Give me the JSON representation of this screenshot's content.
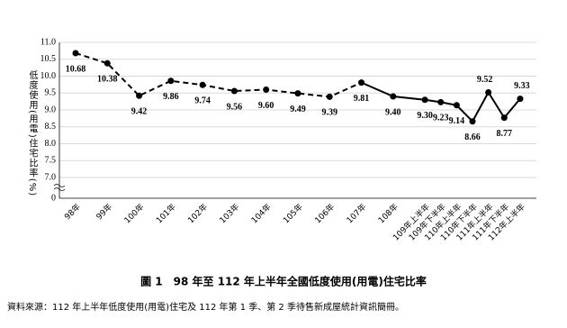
{
  "chart_data": {
    "type": "line",
    "caption": "圖 1　98 年至 112 年上半年全國低度使用(用電)住宅比率",
    "source": "資料來源：112 年上半年低度使用(用電)住宅及 112 年第 1 季、第 2 季待售新成屋統計資訊簡冊。",
    "y_label": "低度使用(用電)住宅比率(%)",
    "categories": [
      "98年",
      "99年",
      "100年",
      "101年",
      "102年",
      "103年",
      "104年",
      "105年",
      "106年",
      "107年",
      "108年",
      "109年上半年",
      "109年下半年",
      "110年上半年",
      "110年下半年",
      "111年上半年",
      "111年下半年",
      "112年上半年"
    ],
    "values": [
      10.68,
      10.38,
      9.42,
      9.86,
      9.74,
      9.56,
      9.6,
      9.49,
      9.39,
      9.81,
      9.4,
      9.3,
      9.23,
      9.14,
      8.66,
      9.52,
      8.77,
      9.33
    ],
    "value_labels": [
      "10.68",
      "10.38",
      "9.42",
      "9.86",
      "9.74",
      "9.56",
      "9.60",
      "9.49",
      "9.39",
      "9.81",
      "9.40",
      "9.30",
      "9.23",
      "9.14",
      "8.66",
      "9.52",
      "8.77",
      "9.33"
    ],
    "color": "#000000",
    "ylim": [
      0,
      11
    ],
    "y_break": [
      0,
      7
    ],
    "yticks": [
      0,
      {
        "value": 7,
        "label": "7.0"
      },
      {
        "value": 7.5,
        "label": "7.5"
      },
      {
        "value": 8,
        "label": "8.0"
      },
      {
        "value": 8.5,
        "label": "8.5"
      },
      {
        "value": 9,
        "label": "9.0"
      },
      {
        "value": 9.5,
        "label": "9.5"
      },
      {
        "value": 10,
        "label": "10.0"
      },
      {
        "value": 10.5,
        "label": "10.5"
      },
      {
        "value": 11,
        "label": "11.0"
      }
    ],
    "grid": true
  }
}
